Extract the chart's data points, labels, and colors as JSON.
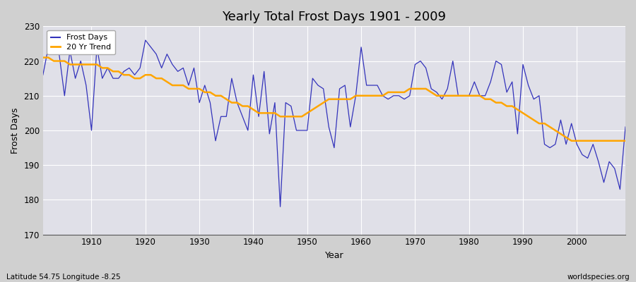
{
  "title": "Yearly Total Frost Days 1901 - 2009",
  "xlabel": "Year",
  "ylabel": "Frost Days",
  "legend_labels": [
    "Frost Days",
    "20 Yr Trend"
  ],
  "frost_line_color": "#3333bb",
  "trend_line_color": "#ffa500",
  "fig_bg_color": "#d0d0d0",
  "plot_bg_color": "#e0e0e8",
  "ylim": [
    170,
    230
  ],
  "xlim": [
    1901,
    2009
  ],
  "yticks": [
    170,
    180,
    190,
    200,
    210,
    220,
    230
  ],
  "xticks": [
    1910,
    1920,
    1930,
    1940,
    1950,
    1960,
    1970,
    1980,
    1990,
    2000
  ],
  "subtitle_left": "Latitude 54.75 Longitude -8.25",
  "subtitle_right": "worldspecies.org",
  "years": [
    1901,
    1902,
    1903,
    1904,
    1905,
    1906,
    1907,
    1908,
    1909,
    1910,
    1911,
    1912,
    1913,
    1914,
    1915,
    1916,
    1917,
    1918,
    1919,
    1920,
    1921,
    1922,
    1923,
    1924,
    1925,
    1926,
    1927,
    1928,
    1929,
    1930,
    1931,
    1932,
    1933,
    1934,
    1935,
    1936,
    1937,
    1938,
    1939,
    1940,
    1941,
    1942,
    1943,
    1944,
    1945,
    1946,
    1947,
    1948,
    1949,
    1950,
    1951,
    1952,
    1953,
    1954,
    1955,
    1956,
    1957,
    1958,
    1959,
    1960,
    1961,
    1962,
    1963,
    1964,
    1965,
    1966,
    1967,
    1968,
    1969,
    1970,
    1971,
    1972,
    1973,
    1974,
    1975,
    1976,
    1977,
    1978,
    1979,
    1980,
    1981,
    1982,
    1983,
    1984,
    1985,
    1986,
    1987,
    1988,
    1989,
    1990,
    1991,
    1992,
    1993,
    1994,
    1995,
    1996,
    1997,
    1998,
    1999,
    2000,
    2001,
    2002,
    2003,
    2004,
    2005,
    2006,
    2007,
    2008,
    2009
  ],
  "frost_days": [
    216,
    224,
    222,
    222,
    210,
    223,
    215,
    220,
    213,
    200,
    224,
    215,
    218,
    215,
    215,
    217,
    218,
    216,
    218,
    226,
    224,
    222,
    218,
    222,
    219,
    217,
    218,
    213,
    218,
    208,
    213,
    208,
    197,
    204,
    204,
    215,
    208,
    204,
    200,
    216,
    204,
    217,
    199,
    208,
    178,
    208,
    207,
    200,
    200,
    200,
    215,
    213,
    212,
    201,
    195,
    212,
    213,
    201,
    210,
    224,
    213,
    213,
    213,
    210,
    209,
    210,
    210,
    209,
    210,
    219,
    220,
    218,
    212,
    211,
    209,
    212,
    220,
    210,
    210,
    210,
    214,
    210,
    210,
    214,
    220,
    219,
    211,
    214,
    199,
    219,
    213,
    209,
    210,
    196,
    195,
    196,
    203,
    196,
    202,
    196,
    193,
    192,
    196,
    191,
    185,
    191,
    189,
    183,
    201
  ],
  "trend_years": [
    1901,
    1902,
    1903,
    1904,
    1905,
    1906,
    1907,
    1908,
    1909,
    1910,
    1911,
    1912,
    1913,
    1914,
    1915,
    1916,
    1917,
    1918,
    1919,
    1920,
    1921,
    1922,
    1923,
    1924,
    1925,
    1926,
    1927,
    1928,
    1929,
    1930,
    1931,
    1932,
    1933,
    1934,
    1935,
    1936,
    1937,
    1938,
    1939,
    1940,
    1941,
    1942,
    1943,
    1944,
    1945,
    1946,
    1947,
    1948,
    1949,
    1950,
    1951,
    1952,
    1953,
    1954,
    1955,
    1956,
    1957,
    1958,
    1959,
    1960,
    1961,
    1962,
    1963,
    1964,
    1965,
    1966,
    1967,
    1968,
    1969,
    1970,
    1971,
    1972,
    1973,
    1974,
    1975,
    1976,
    1977,
    1978,
    1979,
    1980,
    1981,
    1982,
    1983,
    1984,
    1985,
    1986,
    1987,
    1988,
    1989,
    1990,
    1991,
    1992,
    1993,
    1994,
    1995,
    1996,
    1997,
    1998,
    1999,
    2000,
    2001,
    2002,
    2003,
    2004,
    2005,
    2006,
    2007,
    2008,
    2009
  ],
  "trend_vals": [
    221,
    221,
    220,
    220,
    220,
    219,
    219,
    219,
    219,
    219,
    219,
    218,
    218,
    217,
    217,
    216,
    216,
    215,
    215,
    216,
    216,
    215,
    215,
    214,
    213,
    213,
    213,
    212,
    212,
    212,
    211,
    211,
    210,
    210,
    209,
    208,
    208,
    207,
    207,
    206,
    205,
    205,
    205,
    205,
    204,
    204,
    204,
    204,
    204,
    205,
    206,
    207,
    208,
    209,
    209,
    209,
    209,
    209,
    210,
    210,
    210,
    210,
    210,
    210,
    211,
    211,
    211,
    211,
    212,
    212,
    212,
    212,
    211,
    210,
    210,
    210,
    210,
    210,
    210,
    210,
    210,
    210,
    209,
    209,
    208,
    208,
    207,
    207,
    206,
    205,
    204,
    203,
    202,
    202,
    201,
    200,
    199,
    198,
    197,
    197,
    197,
    197,
    197,
    197,
    197,
    197,
    197,
    197,
    197
  ]
}
